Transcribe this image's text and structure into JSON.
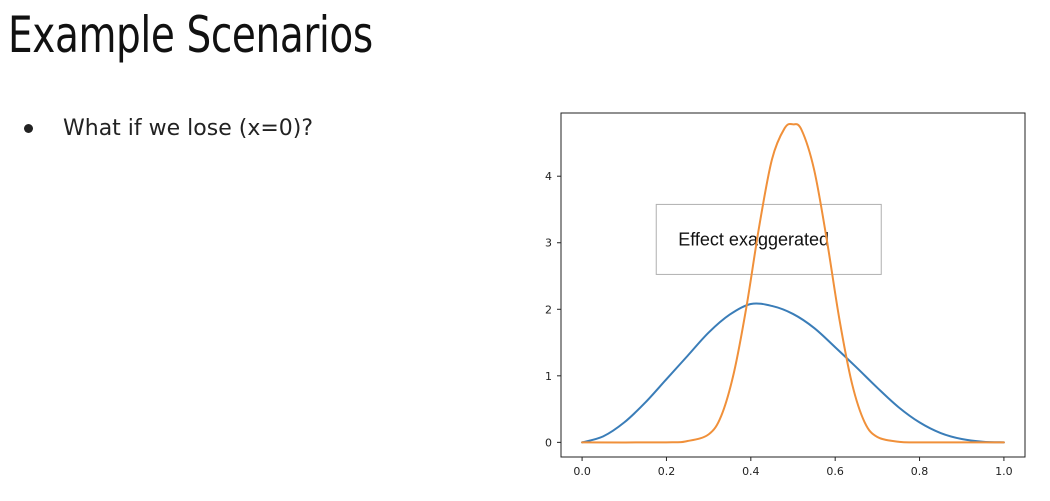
{
  "slide": {
    "title": "Example Scenarios",
    "bullets": [
      "What if we lose (x=0)?"
    ]
  },
  "chart_data": {
    "type": "line",
    "title": "",
    "xlabel": "",
    "ylabel": "",
    "xlim": [
      -0.05,
      1.05
    ],
    "ylim": [
      -0.22,
      4.95
    ],
    "xticks": [
      0.0,
      0.2,
      0.4,
      0.6,
      0.8,
      1.0
    ],
    "xtick_labels": [
      "0.0",
      "0.2",
      "0.4",
      "0.6",
      "0.8",
      "1.0"
    ],
    "yticks": [
      0,
      1,
      2,
      3,
      4
    ],
    "ytick_labels": [
      "0",
      "1",
      "2",
      "3",
      "4"
    ],
    "grid": false,
    "series": [
      {
        "color": "#3a7db8",
        "x": [
          0.0,
          0.05,
          0.1,
          0.15,
          0.2,
          0.25,
          0.3,
          0.35,
          0.4,
          0.45,
          0.5,
          0.55,
          0.6,
          0.65,
          0.7,
          0.75,
          0.8,
          0.85,
          0.9,
          0.95,
          1.0
        ],
        "y": [
          0.0,
          0.09,
          0.3,
          0.6,
          0.95,
          1.3,
          1.65,
          1.92,
          2.08,
          2.05,
          1.93,
          1.72,
          1.43,
          1.13,
          0.82,
          0.53,
          0.3,
          0.14,
          0.05,
          0.01,
          0.0
        ]
      },
      {
        "color": "#f0903a",
        "x": [
          0.0,
          0.2,
          0.25,
          0.3,
          0.33,
          0.36,
          0.39,
          0.42,
          0.45,
          0.48,
          0.5,
          0.52,
          0.55,
          0.58,
          0.61,
          0.64,
          0.67,
          0.7,
          0.75,
          0.8,
          1.0
        ],
        "y": [
          0.0,
          0.0,
          0.02,
          0.12,
          0.4,
          1.05,
          2.05,
          3.25,
          4.25,
          4.72,
          4.78,
          4.7,
          4.1,
          3.05,
          1.85,
          0.88,
          0.3,
          0.08,
          0.01,
          0.0,
          0.0
        ]
      }
    ],
    "annotations": [
      {
        "text": "Effect exaggerated",
        "x": 0.19,
        "y": 3.05,
        "box": true
      }
    ]
  }
}
